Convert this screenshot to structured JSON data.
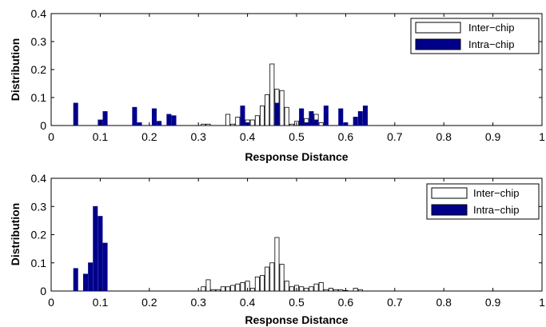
{
  "colors": {
    "inter": "#ffffff",
    "intra": "#00008b",
    "axis": "#000000"
  },
  "chart_data": [
    {
      "type": "bar",
      "xlabel": "Response Distance",
      "ylabel": "Distribution",
      "xlim": [
        0,
        1
      ],
      "ylim": [
        0,
        0.4
      ],
      "xticks": [
        "0",
        "0.1",
        "0.2",
        "0.3",
        "0.4",
        "0.5",
        "0.6",
        "0.7",
        "0.8",
        "0.9",
        "1"
      ],
      "yticks": [
        "0",
        "0.1",
        "0.2",
        "0.3",
        "0.4"
      ],
      "legend": {
        "position": "top-right",
        "entries": [
          "Inter−chip",
          "Intra−chip"
        ]
      },
      "series": [
        {
          "name": "Inter−chip",
          "x": [
            0.31,
            0.32,
            0.36,
            0.37,
            0.38,
            0.39,
            0.4,
            0.41,
            0.42,
            0.43,
            0.44,
            0.45,
            0.46,
            0.47,
            0.48,
            0.49,
            0.5,
            0.51,
            0.52,
            0.53,
            0.54,
            0.55
          ],
          "values": [
            0.005,
            0.005,
            0.04,
            0.005,
            0.03,
            0.01,
            0.02,
            0.02,
            0.035,
            0.07,
            0.11,
            0.22,
            0.13,
            0.125,
            0.065,
            0.005,
            0.015,
            0.02,
            0.025,
            0.01,
            0.04,
            0.01
          ]
        },
        {
          "name": "Intra−chip",
          "x": [
            0.05,
            0.1,
            0.11,
            0.17,
            0.18,
            0.21,
            0.22,
            0.24,
            0.25,
            0.39,
            0.4,
            0.46,
            0.51,
            0.52,
            0.53,
            0.54,
            0.56,
            0.59,
            0.6,
            0.62,
            0.63,
            0.64
          ],
          "values": [
            0.08,
            0.02,
            0.05,
            0.065,
            0.01,
            0.06,
            0.015,
            0.04,
            0.035,
            0.07,
            0.01,
            0.08,
            0.06,
            0.01,
            0.05,
            0.02,
            0.07,
            0.06,
            0.01,
            0.03,
            0.05,
            0.07
          ]
        }
      ]
    },
    {
      "type": "bar",
      "xlabel": "Response Distance",
      "ylabel": "Distribution",
      "xlim": [
        0,
        1
      ],
      "ylim": [
        0,
        0.4
      ],
      "xticks": [
        "0",
        "0.1",
        "0.2",
        "0.3",
        "0.4",
        "0.5",
        "0.6",
        "0.7",
        "0.8",
        "0.9",
        "1"
      ],
      "yticks": [
        "0",
        "0.1",
        "0.2",
        "0.3",
        "0.4"
      ],
      "legend": {
        "position": "top-right",
        "entries": [
          "Inter−chip",
          "Intra−chip"
        ]
      },
      "series": [
        {
          "name": "Inter−chip",
          "x": [
            0.31,
            0.32,
            0.33,
            0.34,
            0.35,
            0.36,
            0.37,
            0.38,
            0.39,
            0.4,
            0.41,
            0.42,
            0.43,
            0.44,
            0.45,
            0.46,
            0.47,
            0.48,
            0.49,
            0.5,
            0.51,
            0.52,
            0.53,
            0.54,
            0.55,
            0.56,
            0.57,
            0.58,
            0.59,
            0.6,
            0.62,
            0.63
          ],
          "values": [
            0.015,
            0.04,
            0.005,
            0.005,
            0.015,
            0.015,
            0.02,
            0.025,
            0.03,
            0.035,
            0.01,
            0.05,
            0.055,
            0.085,
            0.1,
            0.19,
            0.095,
            0.035,
            0.015,
            0.02,
            0.015,
            0.01,
            0.015,
            0.025,
            0.03,
            0.005,
            0.01,
            0.005,
            0.005,
            0.002,
            0.01,
            0.005
          ]
        },
        {
          "name": "Intra−chip",
          "x": [
            0.05,
            0.07,
            0.08,
            0.09,
            0.1,
            0.11
          ],
          "values": [
            0.08,
            0.06,
            0.1,
            0.3,
            0.265,
            0.17
          ]
        }
      ]
    }
  ]
}
